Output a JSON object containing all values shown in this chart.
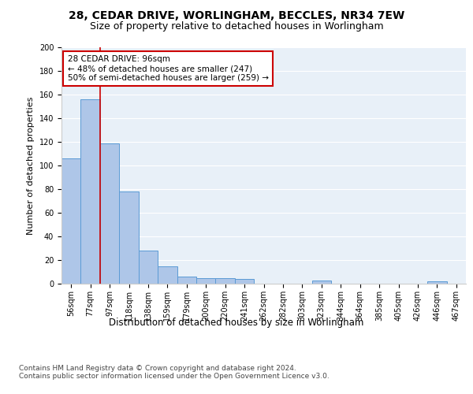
{
  "title1": "28, CEDAR DRIVE, WORLINGHAM, BECCLES, NR34 7EW",
  "title2": "Size of property relative to detached houses in Worlingham",
  "xlabel": "Distribution of detached houses by size in Worlingham",
  "ylabel": "Number of detached properties",
  "categories": [
    "56sqm",
    "77sqm",
    "97sqm",
    "118sqm",
    "138sqm",
    "159sqm",
    "179sqm",
    "200sqm",
    "220sqm",
    "241sqm",
    "262sqm",
    "282sqm",
    "303sqm",
    "323sqm",
    "344sqm",
    "364sqm",
    "385sqm",
    "405sqm",
    "426sqm",
    "446sqm",
    "467sqm"
  ],
  "values": [
    106,
    156,
    119,
    78,
    28,
    15,
    6,
    5,
    5,
    4,
    0,
    0,
    0,
    3,
    0,
    0,
    0,
    0,
    0,
    2,
    0
  ],
  "bar_color": "#aec6e8",
  "bar_edge_color": "#5b9bd5",
  "vline_x": 1.5,
  "vline_color": "#cc0000",
  "annotation_text": "28 CEDAR DRIVE: 96sqm\n← 48% of detached houses are smaller (247)\n50% of semi-detached houses are larger (259) →",
  "annotation_box_color": "#ffffff",
  "annotation_box_edge": "#cc0000",
  "ylim": [
    0,
    200
  ],
  "yticks": [
    0,
    20,
    40,
    60,
    80,
    100,
    120,
    140,
    160,
    180,
    200
  ],
  "background_color": "#e8f0f8",
  "grid_color": "#ffffff",
  "footer": "Contains HM Land Registry data © Crown copyright and database right 2024.\nContains public sector information licensed under the Open Government Licence v3.0.",
  "title1_fontsize": 10,
  "title2_fontsize": 9,
  "xlabel_fontsize": 8.5,
  "ylabel_fontsize": 8,
  "tick_fontsize": 7,
  "annotation_fontsize": 7.5,
  "footer_fontsize": 6.5
}
